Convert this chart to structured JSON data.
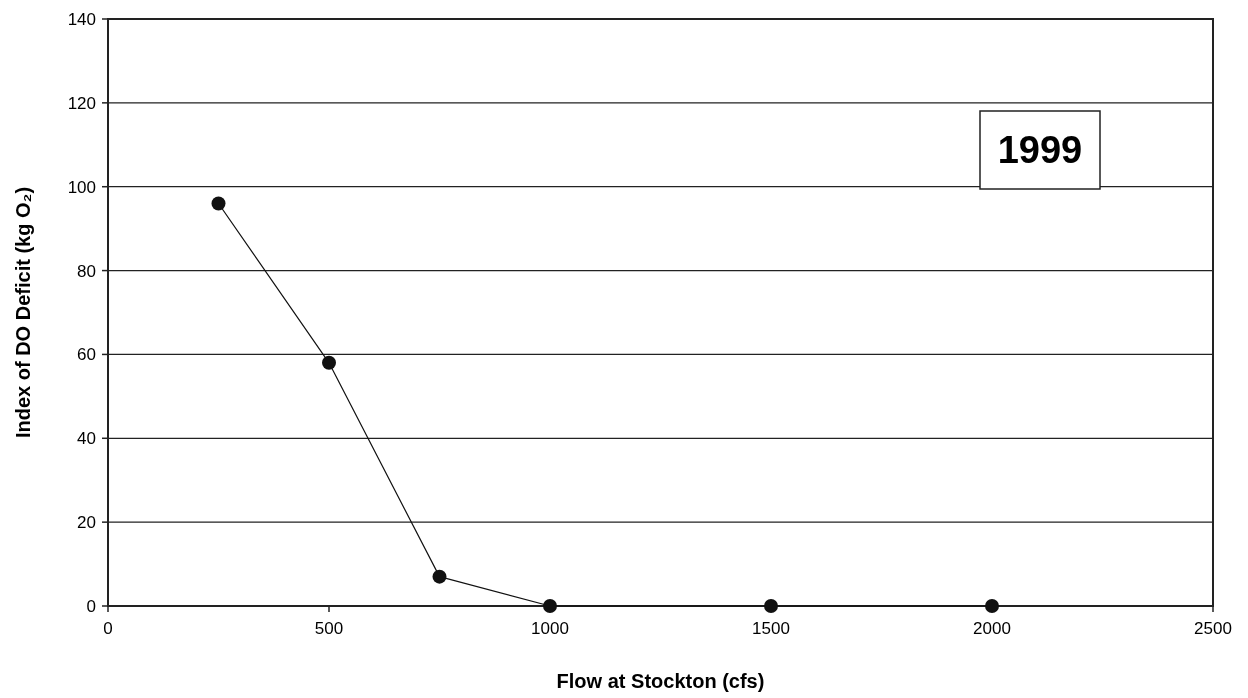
{
  "chart_data": {
    "type": "line",
    "xlabel": "Flow at Stockton (cfs)",
    "ylabel": "Index of DO Deficit (kg O₂)",
    "x": [
      250,
      500,
      750,
      1000,
      1500,
      2000
    ],
    "series": [
      {
        "color": "#111111",
        "values": [
          96,
          58,
          7,
          0,
          0,
          0
        ]
      }
    ],
    "xlim": [
      0,
      2500
    ],
    "xticks": [
      0,
      500,
      1000,
      1500,
      2000,
      2500
    ],
    "ylim": [
      0,
      140
    ],
    "yticks": [
      0,
      20,
      40,
      60,
      80,
      100,
      120,
      140
    ],
    "grid": "y",
    "marker": "circle",
    "line_style": "solid",
    "annotations": [
      "1999"
    ]
  }
}
